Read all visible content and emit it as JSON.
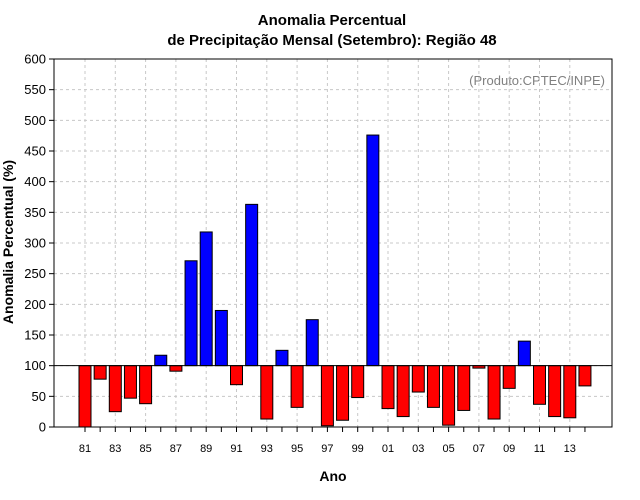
{
  "chart_data": {
    "type": "bar",
    "title": "Anomalia Percentual",
    "subtitle": "de Precipitação Mensal (Setembro): Região 48",
    "xlabel": "Ano",
    "ylabel": "Anomalia Percentual (%)",
    "credit": "(Produto:CPTEC/INPE)",
    "ylim": [
      0,
      600
    ],
    "yticks": [
      0,
      50,
      100,
      150,
      200,
      250,
      300,
      350,
      400,
      450,
      500,
      550,
      600
    ],
    "baseline": 100,
    "grid": true,
    "colors": {
      "above": "#0000ff",
      "below": "#ff0000",
      "edge": "#000000"
    },
    "categories": [
      "81",
      "82",
      "83",
      "84",
      "85",
      "86",
      "87",
      "88",
      "89",
      "90",
      "91",
      "92",
      "93",
      "94",
      "95",
      "96",
      "97",
      "98",
      "99",
      "00",
      "01",
      "02",
      "03",
      "04",
      "05",
      "06",
      "07",
      "08",
      "09",
      "10",
      "11",
      "12",
      "13",
      "14"
    ],
    "tick_labels": [
      "81",
      "83",
      "85",
      "87",
      "89",
      "91",
      "93",
      "95",
      "97",
      "99",
      "01",
      "03",
      "05",
      "07",
      "09",
      "11",
      "13"
    ],
    "values": [
      0,
      78,
      25,
      47,
      38,
      117,
      91,
      271,
      318,
      190,
      69,
      363,
      13,
      125,
      32,
      175,
      2,
      11,
      48,
      476,
      30,
      17,
      57,
      32,
      3,
      27,
      96,
      13,
      63,
      140,
      37,
      17,
      15,
      67
    ]
  }
}
